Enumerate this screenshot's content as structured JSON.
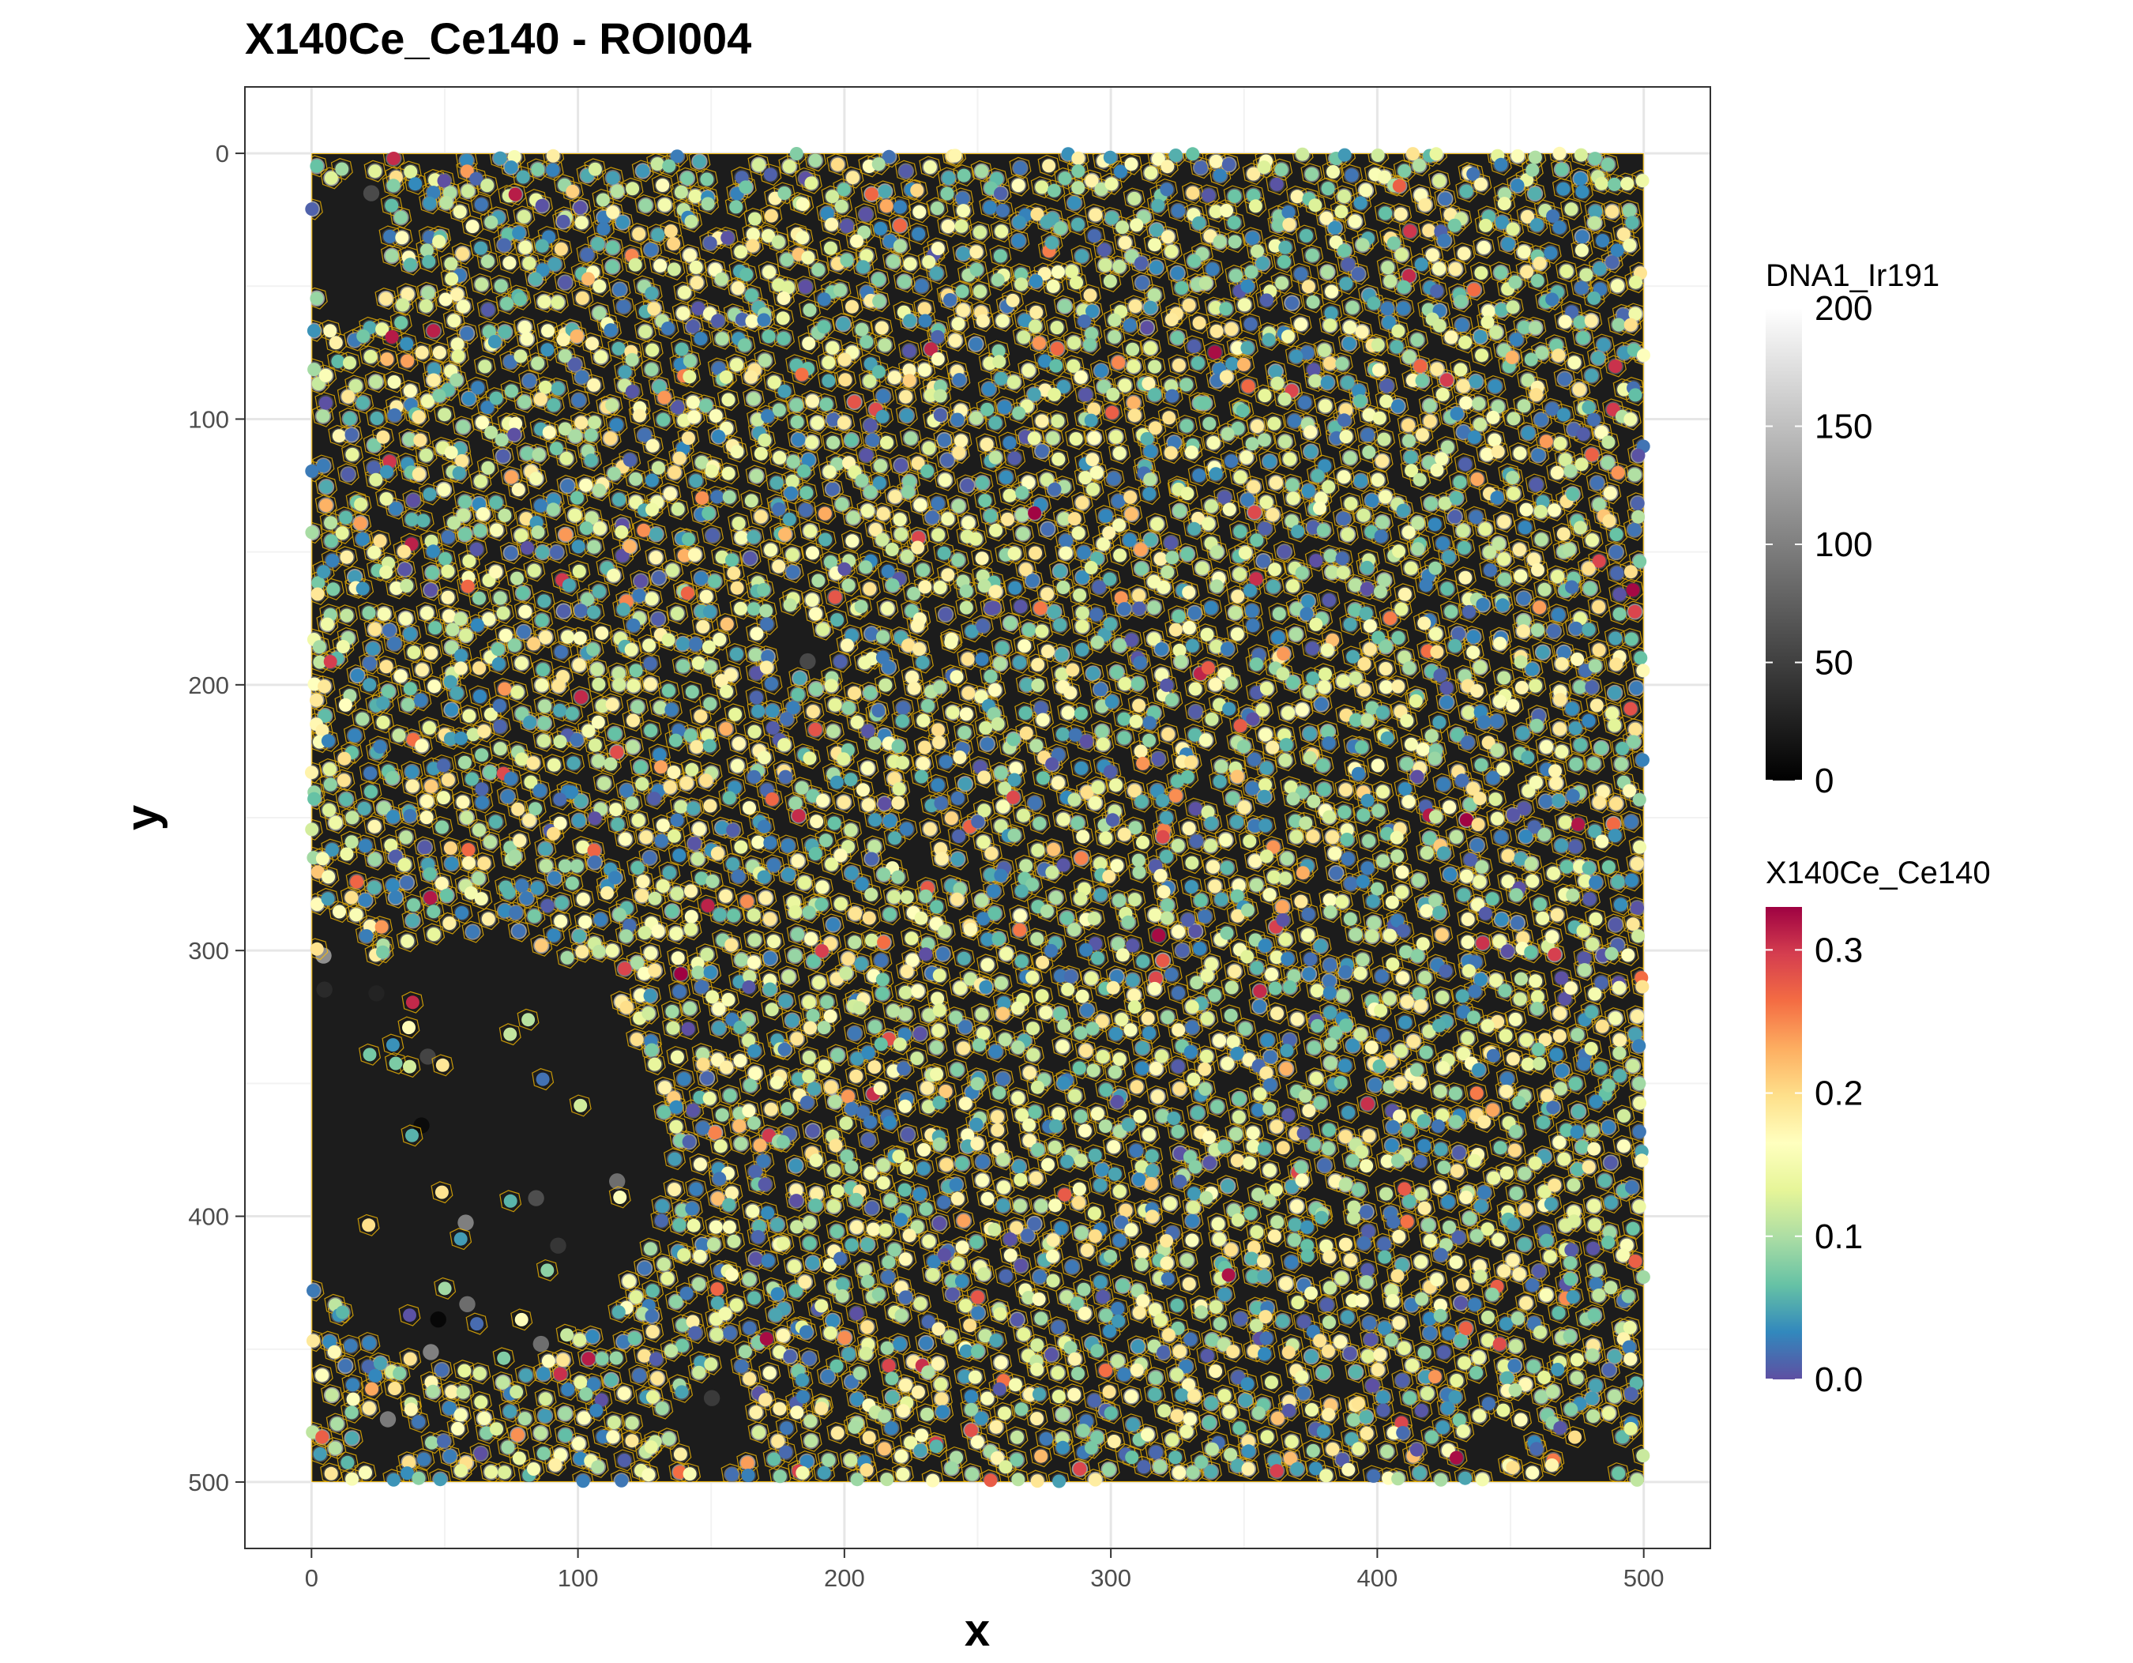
{
  "chart_data": {
    "type": "scatter",
    "title": "X140Ce_Ce140 - ROI004",
    "xlabel": "x",
    "ylabel": "y",
    "xlim": [
      -25,
      525
    ],
    "ylim": [
      525,
      -25
    ],
    "y_reversed": true,
    "x_ticks": [
      0,
      100,
      200,
      300,
      400,
      500
    ],
    "y_ticks": [
      0,
      100,
      200,
      300,
      400,
      500
    ],
    "x_tick_labels": [
      "0",
      "100",
      "200",
      "300",
      "400",
      "500"
    ],
    "y_tick_labels": [
      "0",
      "100",
      "200",
      "300",
      "400",
      "500"
    ],
    "grid": true,
    "image_extent": {
      "x": [
        0,
        500
      ],
      "y": [
        0,
        500
      ]
    },
    "background_image": {
      "name": "DNA1_Ir191",
      "colormap": "grayscale",
      "range": [
        0,
        200
      ],
      "dark_regions": [
        {
          "cx": 60,
          "cy": 375,
          "rx": 72,
          "ry": 82
        },
        {
          "cx": 15,
          "cy": 35,
          "rx": 14,
          "ry": 30
        },
        {
          "cx": 8,
          "cy": 310,
          "rx": 10,
          "ry": 20
        },
        {
          "cx": 187,
          "cy": 187,
          "rx": 12,
          "ry": 8
        },
        {
          "cx": 226,
          "cy": 265,
          "rx": 10,
          "ry": 9
        },
        {
          "cx": 150,
          "cy": 478,
          "rx": 13,
          "ry": 20
        },
        {
          "cx": 480,
          "cy": 490,
          "rx": 12,
          "ry": 10
        },
        {
          "cx": 445,
          "cy": 485,
          "rx": 10,
          "ry": 9
        },
        {
          "cx": 30,
          "cy": 482,
          "rx": 10,
          "ry": 12
        }
      ]
    },
    "cell_outline_color": "#FFC000",
    "point_color_by": "X140Ce_Ce140",
    "n_points_approx": 5000,
    "legends": [
      {
        "title": "DNA1_Ir191",
        "type": "continuous",
        "colors": [
          "#000000",
          "#ffffff"
        ],
        "range": [
          0,
          200
        ],
        "ticks": [
          0,
          50,
          100,
          150,
          200
        ],
        "tick_labels": [
          "0",
          "50",
          "100",
          "150",
          "200"
        ],
        "placement": "right"
      },
      {
        "title": "X140Ce_Ce140",
        "type": "continuous",
        "colors": [
          "#5E4FA2",
          "#3288BD",
          "#66C2A5",
          "#ABDDA4",
          "#E6F598",
          "#FFFFBF",
          "#FEE08B",
          "#FDAE61",
          "#F46D43",
          "#D53E4F",
          "#9E0142"
        ],
        "range": [
          0,
          0.33
        ],
        "ticks": [
          0,
          0.1,
          0.2,
          0.3
        ],
        "tick_labels": [
          "0.0",
          "0.1",
          "0.2",
          "0.3"
        ],
        "placement": "right"
      }
    ]
  }
}
